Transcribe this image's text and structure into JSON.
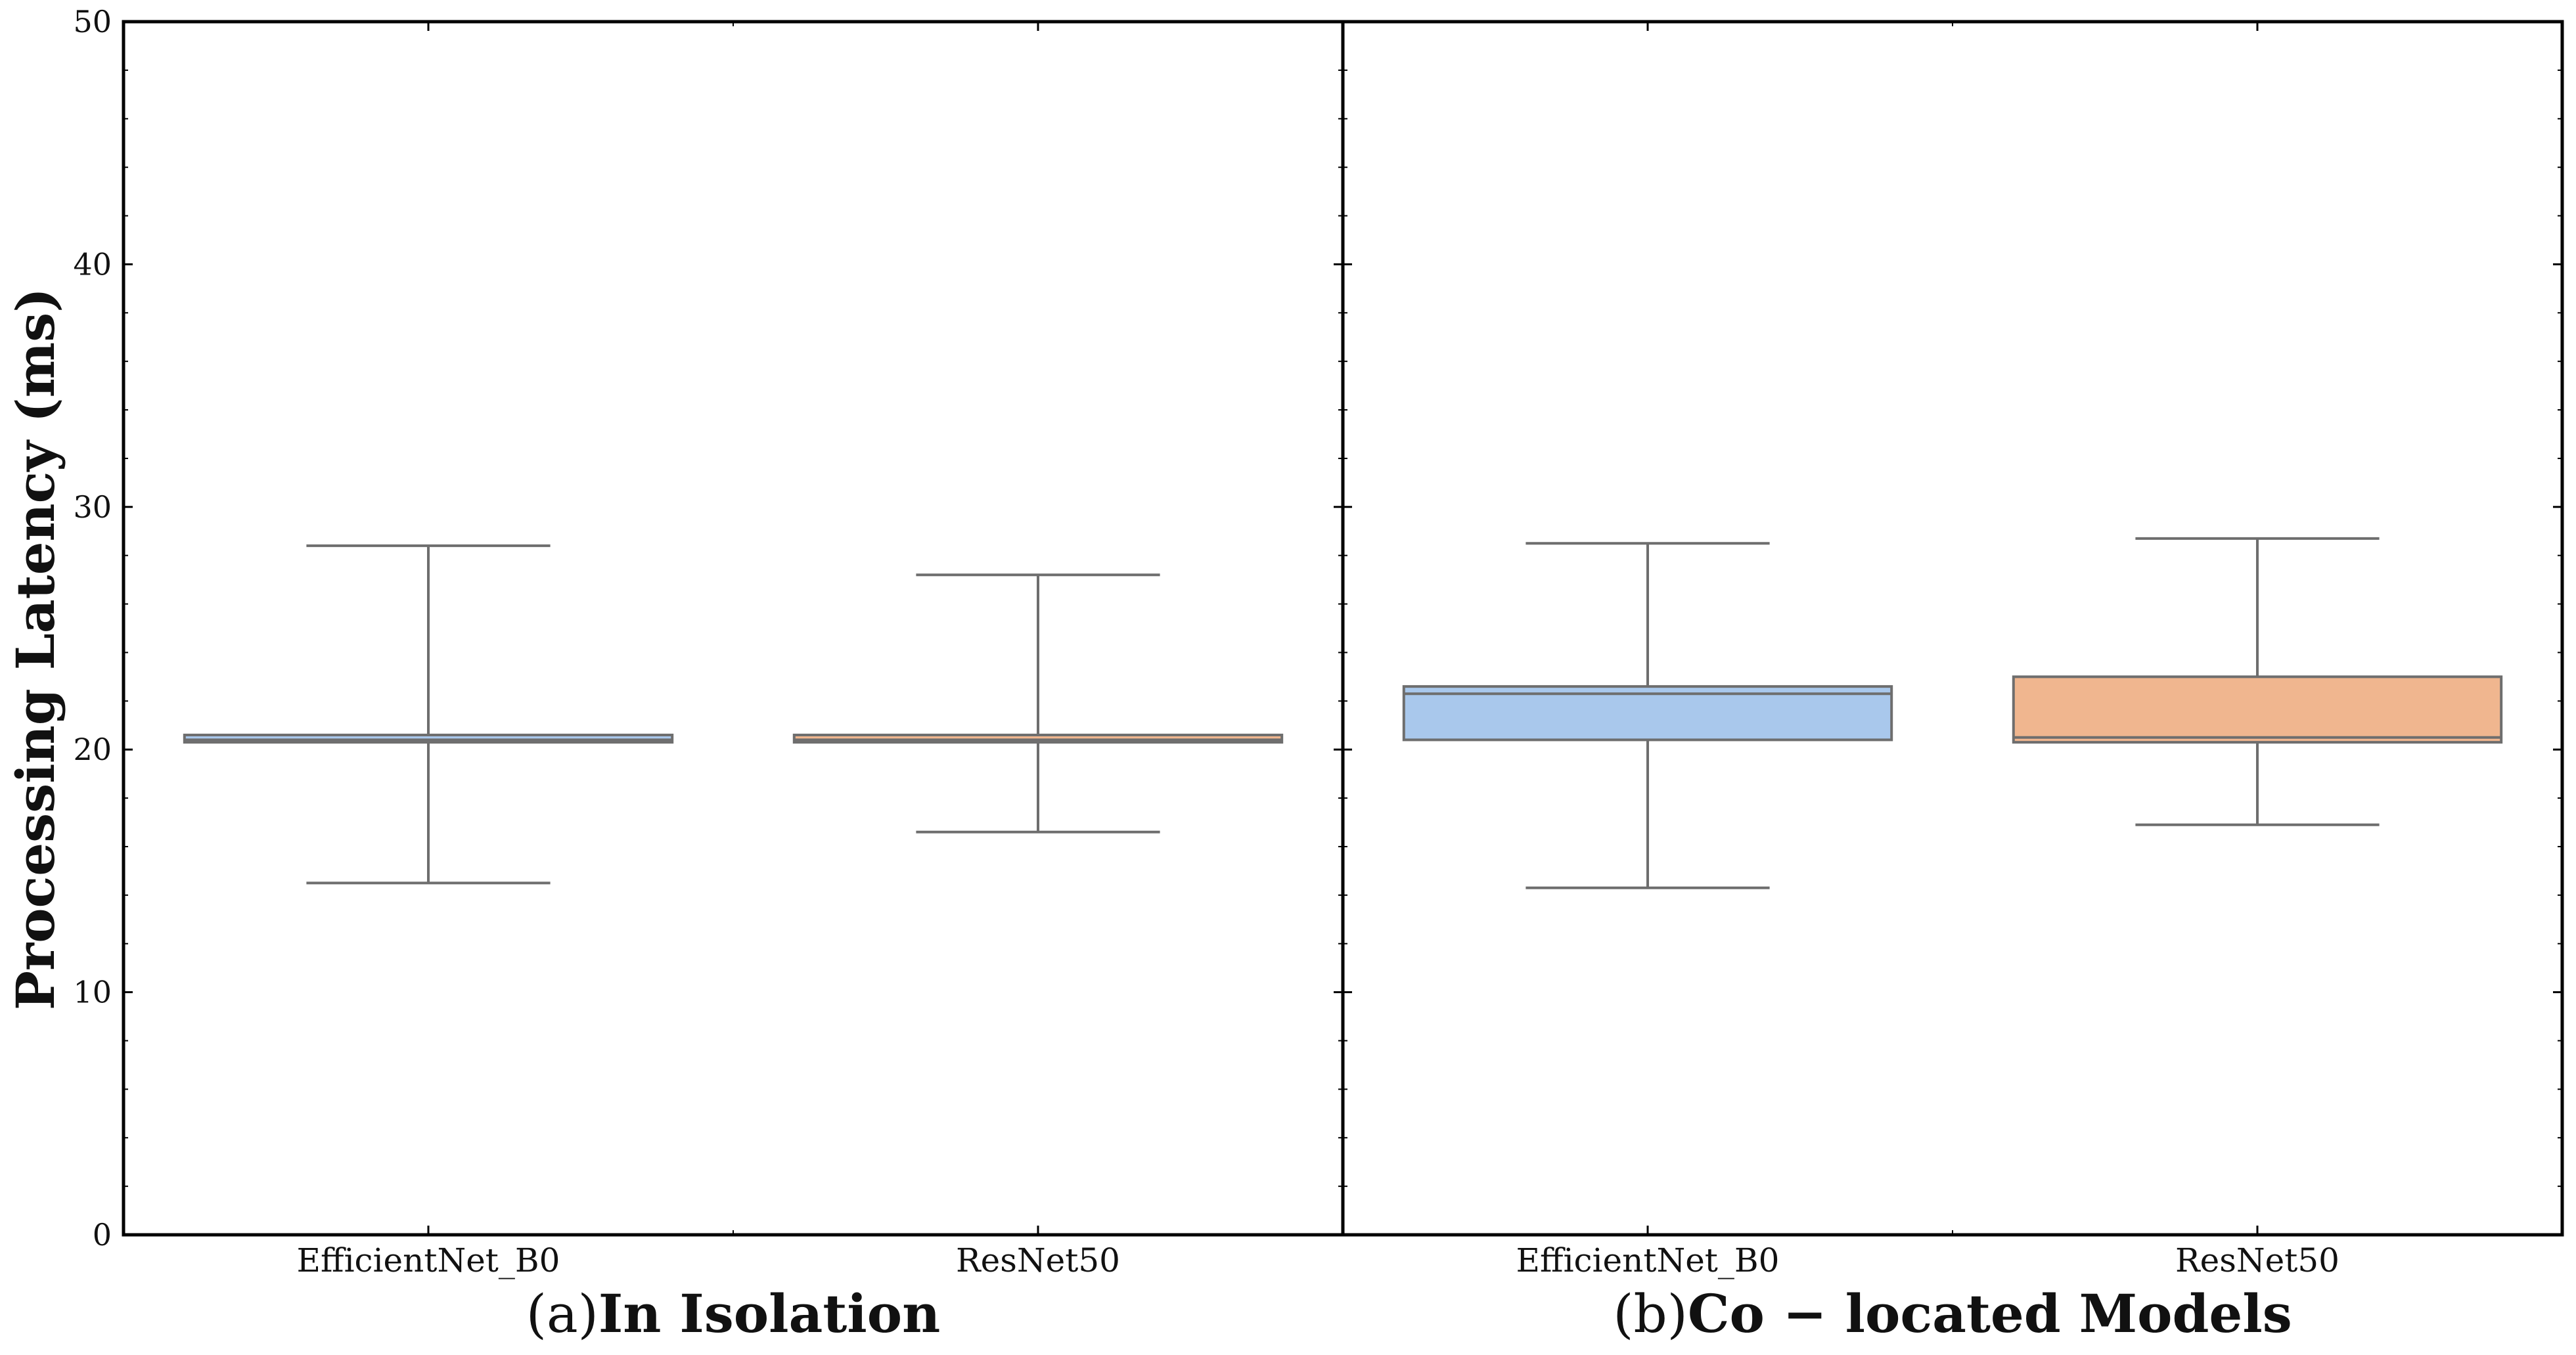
{
  "chart_data": {
    "type": "box",
    "ylabel": "Processing Latency (ms)",
    "ylim": [
      0,
      50
    ],
    "yticks": [
      0,
      10,
      20,
      30,
      40,
      50
    ],
    "grid": false,
    "colors": {
      "EfficientNet_B0": "#a9c8ec",
      "ResNet50": "#f0b68f",
      "box_edge": "#6e6e6e",
      "frame": "#000000"
    },
    "panels": [
      {
        "title_prefix": "(a)",
        "title_main": "In Isolation",
        "categories": [
          "EfficientNet_B0",
          "ResNet50"
        ],
        "boxes": [
          {
            "category": "EfficientNet_B0",
            "whisker_low": 14.5,
            "q1": 20.3,
            "median": 20.4,
            "q3": 20.6,
            "whisker_high": 28.4
          },
          {
            "category": "ResNet50",
            "whisker_low": 16.6,
            "q1": 20.3,
            "median": 20.4,
            "q3": 20.6,
            "whisker_high": 27.2
          }
        ]
      },
      {
        "title_prefix": "(b)",
        "title_main": "Co − located Models",
        "categories": [
          "EfficientNet_B0",
          "ResNet50"
        ],
        "boxes": [
          {
            "category": "EfficientNet_B0",
            "whisker_low": 14.3,
            "q1": 20.4,
            "median": 22.3,
            "q3": 22.6,
            "whisker_high": 28.5
          },
          {
            "category": "ResNet50",
            "whisker_low": 16.9,
            "q1": 20.3,
            "median": 20.5,
            "q3": 23.0,
            "whisker_high": 28.7
          }
        ]
      }
    ]
  }
}
